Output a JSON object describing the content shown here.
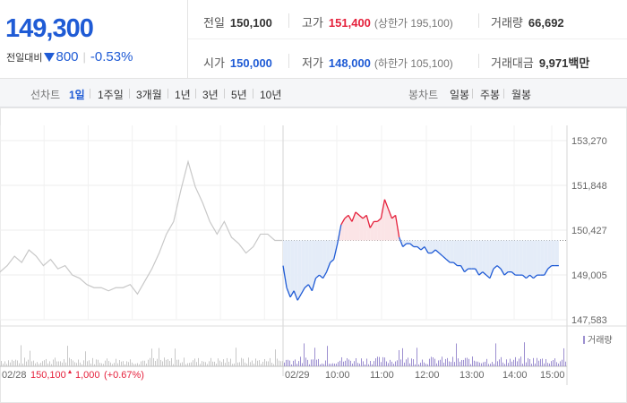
{
  "quote": {
    "price": "149,300",
    "change_label": "전일대비",
    "change": "800",
    "change_rate": "-0.53%",
    "prev_close": {
      "label": "전일",
      "value": "150,100"
    },
    "open": {
      "label": "시가",
      "value": "150,000"
    },
    "high": {
      "label": "고가",
      "value": "151,400",
      "sub": "(상한가 195,100)"
    },
    "low": {
      "label": "저가",
      "value": "148,000",
      "sub": "(하한가 105,100)"
    },
    "volume": {
      "label": "거래량",
      "value": "66,692"
    },
    "amount": {
      "label": "거래대금",
      "value": "9,971",
      "unit": "백만"
    }
  },
  "toolbar": {
    "line_label": "선차트",
    "line_tabs": [
      "1일",
      "1주일",
      "3개월",
      "1년",
      "3년",
      "5년",
      "10년"
    ],
    "line_active": "1일",
    "candle_label": "봉차트",
    "candle_tabs": [
      "일봉",
      "주봉",
      "월봉"
    ]
  },
  "colors": {
    "up": "#e5213c",
    "down": "#1f5bd5",
    "prev_day": "#c8c8c8",
    "down_fill": "#e4ecf8",
    "up_fill": "#fbe4e6"
  },
  "chart_data": {
    "type": "line",
    "y_ticks": [
      "153,270",
      "151,848",
      "150,427",
      "149,005",
      "147,583"
    ],
    "ylim": [
      147583,
      153270
    ],
    "prev_close": 150100,
    "prev_day_label": "02/28",
    "prev_day_summary": {
      "close": "150,100",
      "change": "1,000",
      "rate": "(+0.67%)"
    },
    "x_ticks": [
      "02/29",
      "10:00",
      "11:00",
      "12:00",
      "13:00",
      "14:00",
      "15:00"
    ],
    "volume_legend": "거래량",
    "series": [
      {
        "x": [
          0,
          10,
          20,
          30,
          40,
          50,
          60,
          70,
          80,
          90,
          100,
          110,
          120,
          130,
          140,
          150,
          160,
          170,
          180,
          190,
          200,
          210,
          220,
          230,
          240,
          250,
          260,
          270,
          280,
          290,
          300,
          310,
          320,
          330,
          340,
          350,
          360,
          370,
          380,
          390
        ],
        "y": [
          149100,
          149300,
          149600,
          149400,
          149800,
          149600,
          149300,
          149500,
          149200,
          149300,
          149000,
          148900,
          148700,
          148600,
          148600,
          148500,
          148600,
          148600,
          148700,
          148400,
          148800,
          149200,
          149700,
          150300,
          150700,
          151700,
          152600,
          151800,
          151300,
          150700,
          150300,
          150700,
          150200,
          150000,
          149700,
          149900,
          150300,
          150300,
          150100,
          150100
        ]
      },
      {
        "x": [
          0,
          5,
          10,
          15,
          20,
          25,
          30,
          35,
          40,
          45,
          50,
          55,
          60,
          65,
          70,
          75,
          80,
          85,
          90,
          95,
          100,
          105,
          110,
          115,
          120,
          125,
          130,
          135,
          140,
          145,
          150,
          155,
          160,
          165,
          170,
          175,
          180,
          185,
          190,
          195,
          200,
          205,
          210,
          215,
          220,
          225,
          230,
          235,
          240,
          245,
          250,
          255,
          260,
          265,
          270,
          275,
          280,
          285,
          290,
          295,
          300,
          305,
          310,
          315,
          320,
          325,
          330,
          335,
          340,
          345,
          350,
          355,
          360,
          365,
          370,
          375,
          380
        ],
        "y": [
          149300,
          148600,
          148300,
          148500,
          148200,
          148400,
          148600,
          148700,
          148500,
          148900,
          149000,
          148900,
          149100,
          149400,
          149500,
          150000,
          150600,
          150800,
          150900,
          150700,
          151000,
          150900,
          150800,
          150900,
          150500,
          150700,
          150700,
          150800,
          151400,
          151100,
          150800,
          150900,
          150200,
          149900,
          150000,
          150000,
          149900,
          149900,
          149800,
          149900,
          149700,
          149700,
          149800,
          149700,
          149600,
          149500,
          149400,
          149400,
          149300,
          149300,
          149100,
          149200,
          149200,
          149200,
          149000,
          149100,
          149000,
          148900,
          149200,
          149300,
          149200,
          149000,
          149100,
          149100,
          149000,
          149000,
          149000,
          148900,
          149000,
          148900,
          149000,
          149000,
          149000,
          149200,
          149300,
          149300,
          149300
        ]
      }
    ]
  }
}
